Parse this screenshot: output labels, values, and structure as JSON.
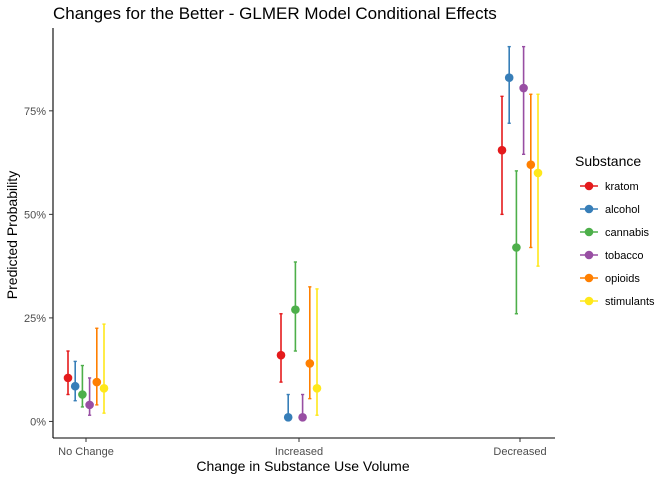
{
  "chart_data": {
    "type": "scatter",
    "variant": "point-range (dodged error bars)",
    "title": "Changes for the Better - GLMER Model Conditional Effects",
    "xlabel": "Change in Substance Use Volume",
    "ylabel": "Predicted Probability",
    "ylim": [
      -0.04,
      0.95
    ],
    "yticks": [
      0,
      0.25,
      0.5,
      0.75
    ],
    "ytick_labels": [
      "0%",
      "25%",
      "50%",
      "75%"
    ],
    "categories": [
      "No Change",
      "Increased",
      "Decreased"
    ],
    "grid": false,
    "legend": {
      "title": "Substance",
      "position": "right"
    },
    "series": [
      {
        "name": "kratom",
        "color": "#E41A1C",
        "values": [
          0.105,
          0.16,
          0.655
        ],
        "lower": [
          0.065,
          0.095,
          0.5
        ],
        "upper": [
          0.17,
          0.26,
          0.785
        ]
      },
      {
        "name": "alcohol",
        "color": "#377EB8",
        "values": [
          0.085,
          0.01,
          0.83
        ],
        "lower": [
          0.05,
          0.002,
          0.72
        ],
        "upper": [
          0.145,
          0.065,
          0.905
        ]
      },
      {
        "name": "cannabis",
        "color": "#4DAF4A",
        "values": [
          0.065,
          0.27,
          0.42
        ],
        "lower": [
          0.035,
          0.17,
          0.26
        ],
        "upper": [
          0.135,
          0.385,
          0.605
        ]
      },
      {
        "name": "tobacco",
        "color": "#984EA3",
        "values": [
          0.04,
          0.01,
          0.805
        ],
        "lower": [
          0.015,
          0.002,
          0.645
        ],
        "upper": [
          0.105,
          0.065,
          0.905
        ]
      },
      {
        "name": "opioids",
        "color": "#FF7F00",
        "values": [
          0.095,
          0.14,
          0.62
        ],
        "lower": [
          0.04,
          0.055,
          0.42
        ],
        "upper": [
          0.225,
          0.325,
          0.79
        ]
      },
      {
        "name": "stimulants",
        "color": "#FFE81A",
        "values": [
          0.08,
          0.08,
          0.6
        ],
        "lower": [
          0.02,
          0.015,
          0.375
        ],
        "upper": [
          0.235,
          0.32,
          0.79
        ]
      }
    ]
  }
}
